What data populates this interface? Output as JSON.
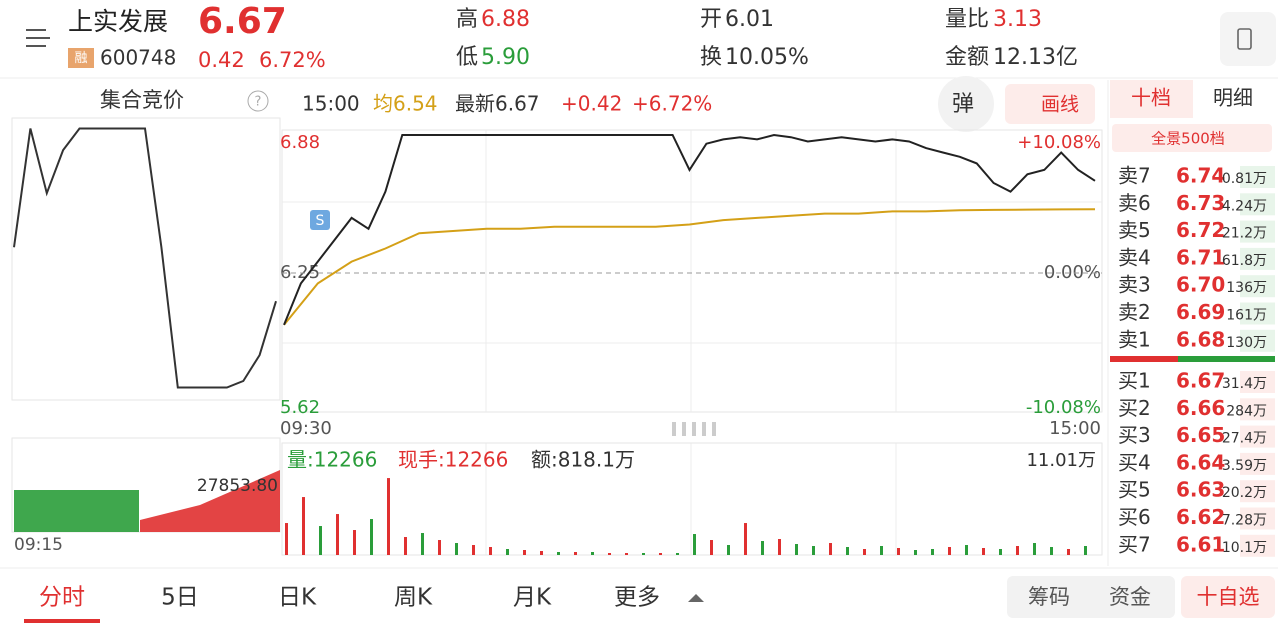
{
  "header": {
    "name": "上实发展",
    "badge": "融",
    "code": "600748",
    "price": "6.67",
    "change": "0.42",
    "change_pct": "6.72%",
    "stats": [
      {
        "label": "高",
        "value": "6.88"
      },
      {
        "label": "低",
        "value": "5.90"
      },
      {
        "label": "开",
        "value": "6.01"
      },
      {
        "label": "换",
        "value": "10.05%"
      },
      {
        "label": "量比",
        "value": "3.13"
      },
      {
        "label": "金额",
        "value": "12.13亿"
      }
    ]
  },
  "auction": {
    "title": "集合竞价",
    "help": "?",
    "time": "09:15",
    "value_label": "27853.80",
    "values": [
      6.3,
      6.85,
      6.55,
      6.75,
      6.85,
      6.85,
      6.85,
      6.85,
      6.85,
      6.3,
      5.65,
      5.65,
      5.65,
      5.65,
      5.68,
      5.8,
      6.05
    ],
    "ylim": [
      5.62,
      6.88
    ]
  },
  "info_bar": {
    "time": "15:00",
    "avg": "均6.54",
    "latest": "最新6.67",
    "change": "+0.42",
    "change_pct": "+6.72%",
    "button_pop": "弹",
    "button_draw": "画线"
  },
  "chart": {
    "ylim": [
      5.62,
      6.88
    ],
    "y_labels": [
      "6.88",
      "6.25",
      "5.62"
    ],
    "pct_labels": [
      "+10.08%",
      "0.00%",
      "-10.08%"
    ],
    "x_labels": [
      "09:30",
      "15:00"
    ],
    "marker": "S",
    "price": [
      6.01,
      6.2,
      6.3,
      6.4,
      6.5,
      6.45,
      6.62,
      6.88,
      6.88,
      6.88,
      6.88,
      6.88,
      6.88,
      6.88,
      6.88,
      6.88,
      6.88,
      6.88,
      6.88,
      6.88,
      6.88,
      6.88,
      6.88,
      6.88,
      6.72,
      6.84,
      6.86,
      6.87,
      6.86,
      6.88,
      6.87,
      6.85,
      6.86,
      6.87,
      6.86,
      6.85,
      6.86,
      6.85,
      6.82,
      6.8,
      6.78,
      6.75,
      6.66,
      6.62,
      6.7,
      6.72,
      6.8,
      6.72,
      6.67
    ],
    "avg": [
      6.01,
      6.2,
      6.3,
      6.36,
      6.43,
      6.44,
      6.45,
      6.45,
      6.46,
      6.46,
      6.46,
      6.46,
      6.47,
      6.49,
      6.5,
      6.51,
      6.52,
      6.52,
      6.53,
      6.53,
      6.535,
      6.537,
      6.538,
      6.539,
      6.54
    ],
    "price_color": "#222222",
    "avg_color": "#d4a017"
  },
  "volume": {
    "label_vol": "量:12266",
    "label_hand": "现手:12266",
    "label_amount": "额:818.1万",
    "max_label": "11.01万",
    "ylim": [
      0,
      11.01
    ],
    "values": [
      3.2,
      5.8,
      2.9,
      4.1,
      2.5,
      3.6,
      7.7,
      1.8,
      2.2,
      1.5,
      1.2,
      1.0,
      0.8,
      0.6,
      0.5,
      0.4,
      0.3,
      0.3,
      0.3,
      0.2,
      0.2,
      0.2,
      0.2,
      0.2,
      2.1,
      1.5,
      1.0,
      3.2,
      1.4,
      1.6,
      1.1,
      0.9,
      1.2,
      0.8,
      0.6,
      0.9,
      0.7,
      0.5,
      0.6,
      0.8,
      1.0,
      0.7,
      0.6,
      0.9,
      1.2,
      0.8,
      0.6,
      0.9
    ],
    "colors": [
      "#e03030",
      "#e03030",
      "#2a9d3a",
      "#e03030",
      "#e03030",
      "#2a9d3a",
      "#e03030",
      "#e03030",
      "#2a9d3a",
      "#e03030",
      "#2a9d3a",
      "#e03030",
      "#e03030",
      "#2a9d3a",
      "#e03030",
      "#e03030",
      "#2a9d3a",
      "#e03030",
      "#2a9d3a",
      "#e03030",
      "#e03030",
      "#2a9d3a",
      "#e03030",
      "#2a9d3a",
      "#2a9d3a",
      "#e03030",
      "#2a9d3a",
      "#e03030",
      "#2a9d3a",
      "#e03030",
      "#2a9d3a",
      "#2a9d3a",
      "#e03030",
      "#2a9d3a",
      "#e03030",
      "#2a9d3a",
      "#e03030",
      "#2a9d3a",
      "#2a9d3a",
      "#e03030",
      "#2a9d3a",
      "#e03030",
      "#2a9d3a",
      "#e03030",
      "#2a9d3a",
      "#2a9d3a",
      "#e03030",
      "#2a9d3a"
    ]
  },
  "order_book": {
    "tabs": [
      "十档",
      "明细"
    ],
    "panorama": "全景500档",
    "sells": [
      {
        "label": "卖7",
        "price": "6.74",
        "volume": "0.81万"
      },
      {
        "label": "卖6",
        "price": "6.73",
        "volume": "4.24万"
      },
      {
        "label": "卖5",
        "price": "6.72",
        "volume": "21.2万"
      },
      {
        "label": "卖4",
        "price": "6.71",
        "volume": "61.8万"
      },
      {
        "label": "卖3",
        "price": "6.70",
        "volume": "136万"
      },
      {
        "label": "卖2",
        "price": "6.69",
        "volume": "161万"
      },
      {
        "label": "卖1",
        "price": "6.68",
        "volume": "130万"
      }
    ],
    "buys": [
      {
        "label": "买1",
        "price": "6.67",
        "volume": "31.4万"
      },
      {
        "label": "买2",
        "price": "6.66",
        "volume": "284万"
      },
      {
        "label": "买3",
        "price": "6.65",
        "volume": "27.4万"
      },
      {
        "label": "买4",
        "price": "6.64",
        "volume": "3.59万"
      },
      {
        "label": "买5",
        "price": "6.63",
        "volume": "20.2万"
      },
      {
        "label": "买6",
        "price": "6.62",
        "volume": "7.28万"
      },
      {
        "label": "买7",
        "price": "6.61",
        "volume": "10.1万"
      }
    ]
  },
  "bottom_tabs": [
    "分时",
    "5日",
    "日K",
    "周K",
    "月K",
    "更多"
  ],
  "bottom_buttons": [
    "筹码",
    "资金",
    "十自选"
  ]
}
